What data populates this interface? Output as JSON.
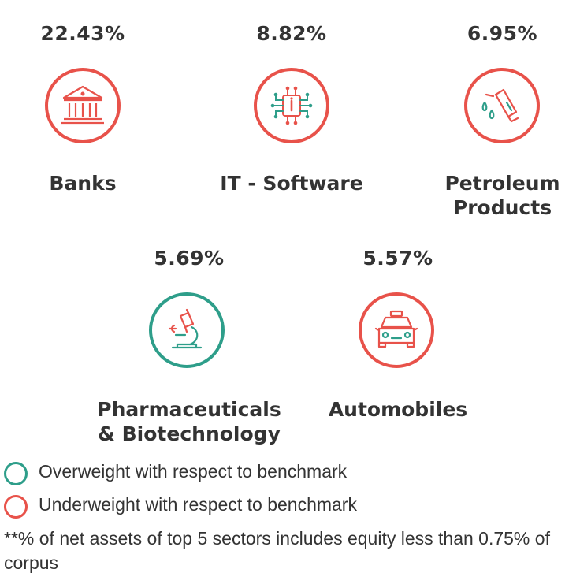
{
  "colors": {
    "overweight": "#2e9e8a",
    "underweight": "#e8524a",
    "text": "#333333"
  },
  "sectors": [
    {
      "percent": "22.43%",
      "name": "Banks",
      "weight": "underweight",
      "icon": "bank-building-icon"
    },
    {
      "percent": "8.82%",
      "name": "IT - Software",
      "weight": "underweight",
      "icon": "circuit-chip-icon"
    },
    {
      "percent": "6.95%",
      "name_line1": "Petroleum",
      "name_line2": "Products",
      "weight": "underweight",
      "icon": "fuel-pump-icon"
    },
    {
      "percent": "5.69%",
      "name_line1": "Pharmaceuticals",
      "name_line2": "& Biotechnology",
      "weight": "overweight",
      "icon": "microscope-icon"
    },
    {
      "percent": "5.57%",
      "name": "Automobiles",
      "weight": "underweight",
      "icon": "car-icon"
    }
  ],
  "legend": {
    "overweight": "Overweight with respect to benchmark",
    "underweight": "Underweight with respect to benchmark"
  },
  "footnote": "**% of net assets of top 5 sectors includes equity less than 0.75% of corpus"
}
